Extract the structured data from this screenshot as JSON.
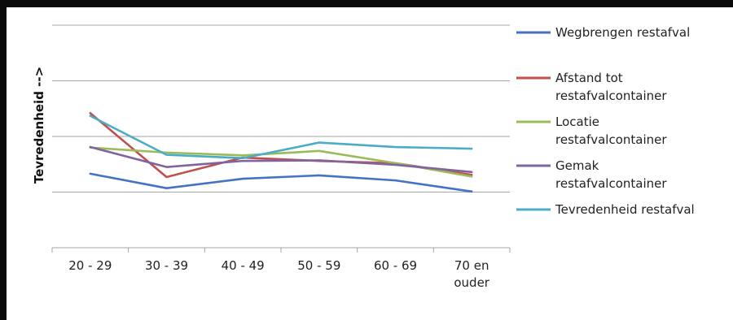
{
  "chart_data": {
    "type": "line",
    "title": "",
    "xlabel": "",
    "ylabel": "Tevredenheid -->",
    "categories": [
      "20 - 29",
      "30 - 39",
      "40 - 49",
      "50 - 59",
      "60 - 69",
      "70 en ouder"
    ],
    "ylim": [
      0,
      4
    ],
    "grid": true,
    "legend_position": "right",
    "series": [
      {
        "name": "Wegbrengen restafval",
        "color": "#4472C4",
        "values": [
          1.33,
          1.07,
          1.24,
          1.3,
          1.21,
          1.01
        ]
      },
      {
        "name": "Afstand tot restafvalcontainer",
        "color": "#C0504D",
        "values": [
          2.42,
          1.27,
          1.62,
          1.56,
          1.52,
          1.31
        ]
      },
      {
        "name": "Locatie restafvalcontainer",
        "color": "#9BBB59",
        "values": [
          1.8,
          1.71,
          1.66,
          1.74,
          1.52,
          1.28
        ]
      },
      {
        "name": "Gemak restafvalcontainer",
        "color": "#8064A2",
        "values": [
          1.81,
          1.45,
          1.56,
          1.57,
          1.49,
          1.36
        ]
      },
      {
        "name": "Tevredenheid restafval",
        "color": "#4BACC6",
        "values": [
          2.37,
          1.67,
          1.61,
          1.89,
          1.81,
          1.78
        ]
      }
    ]
  }
}
